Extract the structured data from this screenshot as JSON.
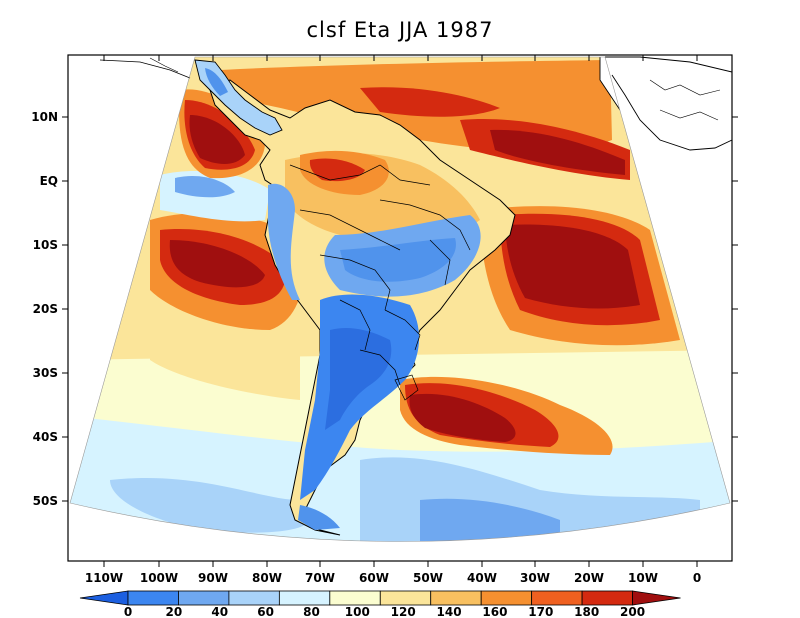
{
  "title": "clsf Eta JJA 1987",
  "lat_labels": [
    "10N",
    "EQ",
    "10S",
    "20S",
    "30S",
    "40S",
    "50S"
  ],
  "lon_labels": [
    "110W",
    "100W",
    "90W",
    "80W",
    "70W",
    "60W",
    "50W",
    "40W",
    "30W",
    "20W",
    "10W",
    "0"
  ],
  "colorbar": {
    "levels": [
      "0",
      "20",
      "40",
      "60",
      "80",
      "100",
      "120",
      "140",
      "160",
      "170",
      "180",
      "200"
    ],
    "colors": [
      "#1c5fe0",
      "#3c86f0",
      "#6fa8f0",
      "#a9d3f9",
      "#d6f3ff",
      "#fbfdd0",
      "#fbe59a",
      "#f8c060",
      "#f59030",
      "#ef6020",
      "#d42a10",
      "#a00f0f"
    ]
  },
  "colors": {
    "land_blue_dark": "#2c6ee0",
    "land_blue_mid": "#5093ec",
    "ocean_deep_red": "#a00f0f",
    "ocean_red": "#d42a10",
    "ocean_orange": "#f59030",
    "ocean_yellow": "#fbe59a",
    "ocean_pale": "#fbfdd0",
    "ocean_lightblue": "#d6f3ff"
  }
}
